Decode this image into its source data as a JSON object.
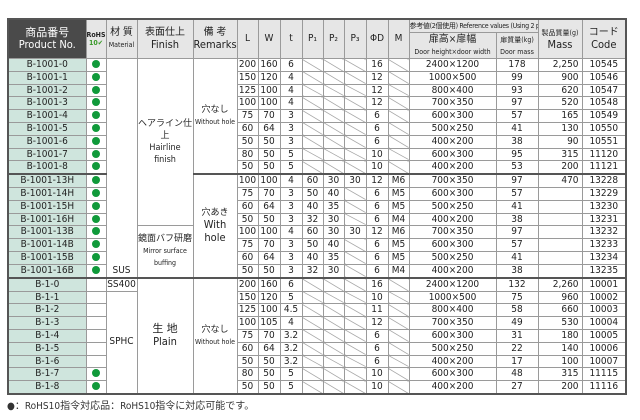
{
  "header": {
    "product": "商品番号",
    "product_en": "Product No.",
    "rohs": "RoHS",
    "rohs_sub": "10✔",
    "material": "材 質",
    "material_en": "Material",
    "finish": "表面仕上",
    "finish_en": "Finish",
    "remarks": "備 考",
    "remarks_en": "Remarks",
    "L": "L",
    "W": "W",
    "t": "t",
    "P1": "P₁",
    "P2": "P₂",
    "P3": "P₃",
    "D": "ΦD",
    "M": "M",
    "ref": "参考値(2個使用) Reference values (Using 2 pieces)",
    "door_size": "扉高×扉幅",
    "door_size_en": "Door height×door width",
    "door_mass": "扉質量(kg)",
    "door_mass_en": "Door mass",
    "mass": "製品質量(g)",
    "mass_en": "Mass",
    "code": "コード",
    "code_en": "Code"
  },
  "groups": {
    "sus": "SUS",
    "ss400": "SS400",
    "sphc": "SPHC",
    "hairline": "ヘアライン仕上",
    "hairline_en": "Hairline finish",
    "mirror": "鏡面バフ研磨",
    "mirror_en": "Mirror surface buffing",
    "plain": "生 地",
    "plain_en": "Plain",
    "nohole": "穴なし",
    "nohole_en": "Without hole",
    "hole": "穴あき",
    "hole_en": "With hole"
  },
  "rows": [
    [
      "B-1001-0",
      true,
      "200",
      "160",
      "6",
      "",
      "",
      "",
      "16",
      "",
      "2400×1200",
      "178",
      "2,250",
      "10545"
    ],
    [
      "B-1001-1",
      true,
      "150",
      "120",
      "4",
      "",
      "",
      "",
      "12",
      "",
      "1000×500",
      "99",
      "900",
      "10546"
    ],
    [
      "B-1001-2",
      true,
      "125",
      "100",
      "4",
      "",
      "",
      "",
      "12",
      "",
      "800×400",
      "93",
      "620",
      "10547"
    ],
    [
      "B-1001-3",
      true,
      "100",
      "100",
      "4",
      "",
      "",
      "",
      "12",
      "",
      "700×350",
      "97",
      "520",
      "10548"
    ],
    [
      "B-1001-4",
      true,
      "75",
      "70",
      "3",
      "",
      "",
      "",
      "6",
      "",
      "600×300",
      "57",
      "165",
      "10549"
    ],
    [
      "B-1001-5",
      true,
      "60",
      "64",
      "3",
      "",
      "",
      "",
      "6",
      "",
      "500×250",
      "41",
      "130",
      "10550"
    ],
    [
      "B-1001-6",
      true,
      "50",
      "50",
      "3",
      "",
      "",
      "",
      "6",
      "",
      "400×200",
      "38",
      "90",
      "10551"
    ],
    [
      "B-1001-7",
      true,
      "80",
      "50",
      "5",
      "",
      "",
      "",
      "10",
      "",
      "600×300",
      "95",
      "315",
      "11120"
    ],
    [
      "B-1001-8",
      true,
      "50",
      "50",
      "5",
      "",
      "",
      "",
      "10",
      "",
      "400×200",
      "53",
      "200",
      "11121"
    ],
    [
      "B-1001-13H",
      true,
      "100",
      "100",
      "4",
      "60",
      "30",
      "30",
      "12",
      "M6",
      "700×350",
      "97",
      "470",
      "13228"
    ],
    [
      "B-1001-14H",
      true,
      "75",
      "70",
      "3",
      "50",
      "40",
      "",
      "6",
      "M5",
      "600×300",
      "57",
      "",
      "13229"
    ],
    [
      "B-1001-15H",
      true,
      "60",
      "64",
      "3",
      "40",
      "35",
      "",
      "6",
      "M5",
      "500×250",
      "41",
      "",
      "13230"
    ],
    [
      "B-1001-16H",
      true,
      "50",
      "50",
      "3",
      "32",
      "30",
      "",
      "6",
      "M4",
      "400×200",
      "38",
      "",
      "13231"
    ],
    [
      "B-1001-13B",
      true,
      "100",
      "100",
      "4",
      "60",
      "30",
      "30",
      "12",
      "M6",
      "700×350",
      "97",
      "",
      "13232"
    ],
    [
      "B-1001-14B",
      true,
      "75",
      "70",
      "3",
      "50",
      "40",
      "",
      "6",
      "M5",
      "600×300",
      "57",
      "",
      "13233"
    ],
    [
      "B-1001-15B",
      true,
      "60",
      "64",
      "3",
      "40",
      "35",
      "",
      "6",
      "M5",
      "500×250",
      "41",
      "",
      "13234"
    ],
    [
      "B-1001-16B",
      true,
      "50",
      "50",
      "3",
      "32",
      "30",
      "",
      "6",
      "M4",
      "400×200",
      "38",
      "",
      "13235"
    ],
    [
      "B-1-0",
      false,
      "200",
      "160",
      "6",
      "",
      "",
      "",
      "16",
      "",
      "2400×1200",
      "132",
      "2,260",
      "10001"
    ],
    [
      "B-1-1",
      false,
      "150",
      "120",
      "5",
      "",
      "",
      "",
      "10",
      "",
      "1000×500",
      "75",
      "960",
      "10002"
    ],
    [
      "B-1-2",
      false,
      "125",
      "100",
      "4.5",
      "",
      "",
      "",
      "11",
      "",
      "800×400",
      "58",
      "660",
      "10003"
    ],
    [
      "B-1-3",
      false,
      "100",
      "105",
      "4",
      "",
      "",
      "",
      "12",
      "",
      "700×350",
      "49",
      "530",
      "10004"
    ],
    [
      "B-1-4",
      false,
      "75",
      "70",
      "3.2",
      "",
      "",
      "",
      "6",
      "",
      "600×300",
      "31",
      "180",
      "10005"
    ],
    [
      "B-1-5",
      false,
      "60",
      "64",
      "3.2",
      "",
      "",
      "",
      "6",
      "",
      "500×250",
      "22",
      "140",
      "10006"
    ],
    [
      "B-1-6",
      false,
      "50",
      "50",
      "3.2",
      "",
      "",
      "",
      "6",
      "",
      "400×200",
      "17",
      "100",
      "10007"
    ],
    [
      "B-1-7",
      true,
      "80",
      "50",
      "5",
      "",
      "",
      "",
      "10",
      "",
      "600×300",
      "48",
      "315",
      "11115"
    ],
    [
      "B-1-8",
      true,
      "50",
      "50",
      "5",
      "",
      "",
      "",
      "10",
      "",
      "400×200",
      "27",
      "200",
      "11116"
    ]
  ],
  "footnote": "●：RoHS10指令対応品：RoHS10指令に対応可能です。",
  "colors": {
    "rohs_dot": "#109a3a",
    "product_bg": "#cfe5dd",
    "header_dark": "#4a4a4a"
  }
}
